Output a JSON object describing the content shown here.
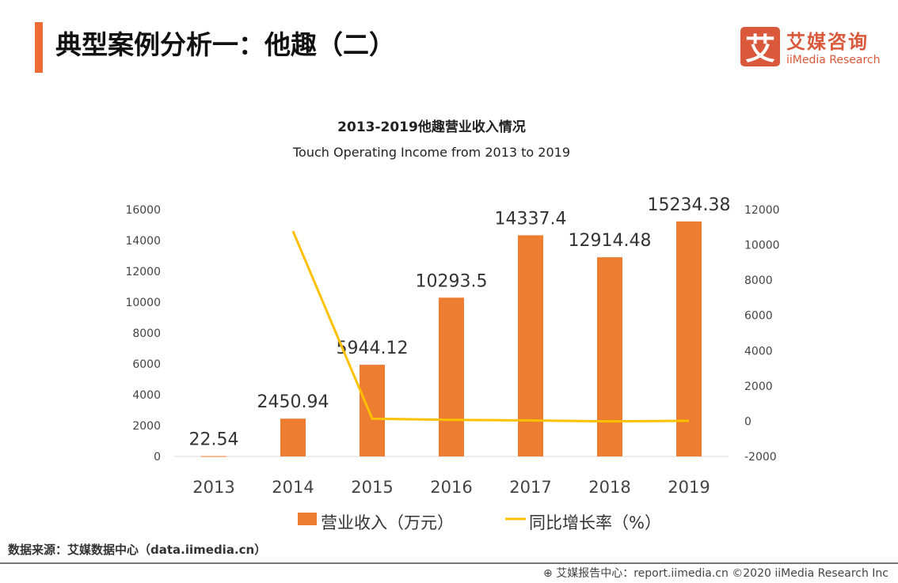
{
  "header": {
    "title": "典型案例分析一：他趣（二）",
    "logo_cn": "艾媒咨询",
    "logo_en": "iiMedia Research",
    "logo_mark": "艾"
  },
  "chart_data": {
    "type": "bar+line",
    "title": "2013-2019他趣营业收入情况",
    "subtitle": "Touch Operating Income from 2013 to 2019",
    "categories": [
      "2013",
      "2014",
      "2015",
      "2016",
      "2017",
      "2018",
      "2019"
    ],
    "series": [
      {
        "name": "营业收入（万元）",
        "type": "bar",
        "axis": "left",
        "color": "#ed7d31",
        "values": [
          22.54,
          2450.94,
          5944.12,
          10293.5,
          14337.4,
          12914.48,
          15234.38
        ],
        "labels": [
          "22.54",
          "2450.94",
          "5944.12",
          "10293.5",
          "14337.4",
          "12914.48",
          "15234.38"
        ]
      },
      {
        "name": "同比增长率（%）",
        "type": "line",
        "axis": "right",
        "color": "#ffc000",
        "values": [
          null,
          10773.8,
          142.5,
          73.2,
          39.3,
          -9.9,
          18.0
        ]
      }
    ],
    "left_axis": {
      "ylim": [
        0,
        16000
      ],
      "ticks": [
        "0",
        "2000",
        "4000",
        "6000",
        "8000",
        "10000",
        "12000",
        "14000",
        "16000"
      ]
    },
    "right_axis": {
      "ylim": [
        -2000,
        12000
      ],
      "ticks": [
        "-2000",
        "0",
        "2000",
        "4000",
        "6000",
        "8000",
        "10000",
        "12000"
      ]
    },
    "grid": false,
    "legend": "bottom"
  },
  "source": "数据来源：艾媒数据中心（data.iimedia.cn）",
  "footer": "艾媒报告中心：report.iimedia.cn   ©2020  iiMedia Research  Inc"
}
